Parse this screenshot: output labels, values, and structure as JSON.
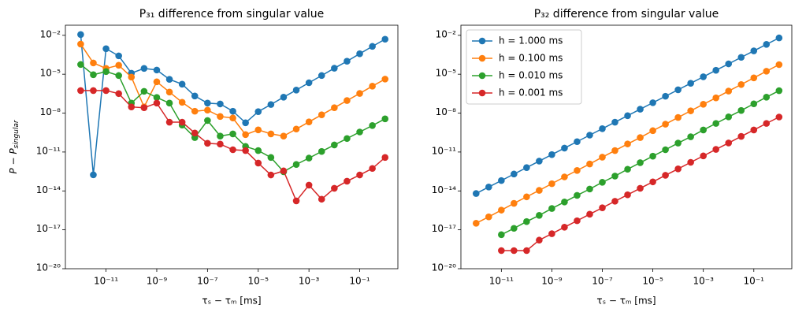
{
  "chart_data": [
    {
      "type": "line",
      "title": "P₃₁ difference from singular value",
      "xlabel": "τₛ − τₘ [ms]",
      "ylabel": "P − P",
      "ylabel_sub": "singular",
      "xscale": "log",
      "yscale": "log",
      "x": [
        1e-12,
        3.16e-12,
        1e-11,
        3.16e-11,
        1e-10,
        3.16e-10,
        1e-09,
        3.16e-09,
        1e-08,
        3.16e-08,
        1e-07,
        3.16e-07,
        1e-06,
        3.16e-06,
        1e-05,
        3.16e-05,
        0.0001,
        0.000316,
        0.001,
        0.00316,
        0.01,
        0.0316,
        0.1,
        0.316,
        1
      ],
      "xlim": [
        2.5e-13,
        3.2
      ],
      "ylim": [
        1e-20,
        0.06
      ],
      "xticks": [
        {
          "value": 1e-11,
          "label": "10⁻¹¹"
        },
        {
          "value": 1e-09,
          "label": "10⁻⁹"
        },
        {
          "value": 1e-07,
          "label": "10⁻⁷"
        },
        {
          "value": 1e-05,
          "label": "10⁻⁵"
        },
        {
          "value": 0.001,
          "label": "10⁻³"
        },
        {
          "value": 0.1,
          "label": "10⁻¹"
        }
      ],
      "yticks": [
        {
          "value": 1e-20,
          "label": "10⁻²⁰"
        },
        {
          "value": 1e-17,
          "label": "10⁻¹⁷"
        },
        {
          "value": 1e-14,
          "label": "10⁻¹⁴"
        },
        {
          "value": 1e-11,
          "label": "10⁻¹¹"
        },
        {
          "value": 1e-08,
          "label": "10⁻⁸"
        },
        {
          "value": 1e-05,
          "label": "10⁻⁵"
        },
        {
          "value": 0.01,
          "label": "10⁻²"
        }
      ],
      "series": [
        {
          "color": "#1f77b4",
          "values": [
            0.0115,
            1.74e-13,
            0.00093,
            0.00026,
            1.2e-05,
            2.8e-05,
            2.1e-05,
            4e-06,
            1.7e-06,
            2.1e-07,
            5.9e-08,
            5.1e-08,
            1.4e-08,
            1.8e-09,
            1.3e-08,
            4.6e-08,
            1.7e-07,
            6e-07,
            2.2e-06,
            7.9e-06,
            2.9e-05,
            0.0001,
            0.00038,
            0.0014,
            0.005
          ]
        },
        {
          "color": "#ff7f0e",
          "values": [
            0.0021,
            7.4e-05,
            2.8e-05,
            4.9e-05,
            6e-06,
            3e-08,
            2.6e-06,
            4.2e-07,
            6.8e-08,
            1.4e-08,
            1.7e-08,
            5.5e-09,
            4.2e-09,
            2.2e-10,
            5.1e-10,
            2.5e-10,
            1.7e-10,
            5.9e-10,
            2.1e-09,
            7.4e-09,
            2.6e-08,
            9.3e-08,
            3.3e-07,
            1.2e-06,
            4.2e-06
          ]
        },
        {
          "color": "#2ca02c",
          "values": [
            5.6e-05,
            9.1e-06,
            1.6e-05,
            7.9e-06,
            5.9e-08,
            4.8e-07,
            1.6e-07,
            5.9e-08,
            1.2e-09,
            1.3e-10,
            2.7e-09,
            1.7e-10,
            2.5e-10,
            2.7e-11,
            1.3e-11,
            3.8e-12,
            3e-13,
            1.1e-12,
            3.4e-12,
            1.1e-11,
            3.5e-11,
            1.1e-10,
            3.5e-10,
            1.1e-09,
            3.6e-09
          ]
        },
        {
          "color": "#d62728",
          "values": [
            5.5e-07,
            5.5e-07,
            5.5e-07,
            3.2e-07,
            3e-08,
            2.6e-08,
            5.9e-08,
            2e-09,
            2e-09,
            2.9e-10,
            4.7e-11,
            4.1e-11,
            1.5e-11,
            1.3e-11,
            1.4e-12,
            1.7e-13,
            3.5e-13,
            1.7e-15,
            2.8e-14,
            2.3e-15,
            1.6e-14,
            5.6e-14,
            1.7e-13,
            5.4e-13,
            3.8e-12
          ]
        }
      ]
    },
    {
      "type": "line",
      "title": "P₃₂ difference from singular value",
      "xlabel": "τₛ − τₘ [ms]",
      "xscale": "log",
      "yscale": "log",
      "legend": "upper left",
      "x": [
        1e-12,
        3.16e-12,
        1e-11,
        3.16e-11,
        1e-10,
        3.16e-10,
        1e-09,
        3.16e-09,
        1e-08,
        3.16e-08,
        1e-07,
        3.16e-07,
        1e-06,
        3.16e-06,
        1e-05,
        3.16e-05,
        0.0001,
        0.000316,
        0.001,
        0.00316,
        0.01,
        0.0316,
        0.1,
        0.316,
        1
      ],
      "xlim": [
        2.5e-13,
        3.2
      ],
      "ylim": [
        1e-20,
        0.06
      ],
      "xticks": [
        {
          "value": 1e-11,
          "label": "10⁻¹¹"
        },
        {
          "value": 1e-09,
          "label": "10⁻⁹"
        },
        {
          "value": 1e-07,
          "label": "10⁻⁷"
        },
        {
          "value": 1e-05,
          "label": "10⁻⁵"
        },
        {
          "value": 0.001,
          "label": "10⁻³"
        },
        {
          "value": 0.1,
          "label": "10⁻¹"
        }
      ],
      "yticks": [
        {
          "value": 1e-20,
          "label": "10⁻²⁰"
        },
        {
          "value": 1e-17,
          "label": "10⁻¹⁷"
        },
        {
          "value": 1e-14,
          "label": "10⁻¹⁴"
        },
        {
          "value": 1e-11,
          "label": "10⁻¹¹"
        },
        {
          "value": 1e-08,
          "label": "10⁻⁸"
        },
        {
          "value": 1e-05,
          "label": "10⁻⁵"
        },
        {
          "value": 0.01,
          "label": "10⁻²"
        }
      ],
      "series": [
        {
          "name": "h = 1.000 ms",
          "color": "#1f77b4",
          "values": [
            6.3e-15,
            2e-14,
            6.3e-14,
            2e-13,
            6.3e-13,
            2e-12,
            6.3e-12,
            2e-11,
            6.3e-11,
            2e-10,
            6.3e-10,
            2e-09,
            6.3e-09,
            2e-08,
            6.3e-08,
            2e-07,
            6.3e-07,
            2e-06,
            6.3e-06,
            2e-05,
            6.3e-05,
            0.0002,
            0.00063,
            0.002,
            0.0063
          ]
        },
        {
          "name": "h = 0.100 ms",
          "color": "#ff7f0e",
          "values": [
            3.2e-17,
            1e-16,
            3.3e-16,
            1.1e-15,
            3.5e-15,
            1.1e-14,
            3.6e-14,
            1.2e-13,
            3.8e-13,
            1.2e-12,
            4e-12,
            1.3e-11,
            4.2e-11,
            1.3e-10,
            4.4e-10,
            1.4e-09,
            4.6e-09,
            1.5e-08,
            4.8e-08,
            1.5e-07,
            5e-07,
            1.6e-06,
            5.2e-06,
            1.7e-05,
            5.5e-05
          ]
        },
        {
          "name": "h = 0.010 ms",
          "color": "#2ca02c",
          "values": [
            null,
            null,
            4.2e-18,
            1.3e-17,
            4.3e-17,
            1.3e-16,
            4.4e-16,
            1.4e-15,
            4.5e-15,
            1.4e-14,
            4.6e-14,
            1.4e-13,
            4.7e-13,
            1.5e-12,
            4.8e-12,
            1.5e-11,
            4.9e-11,
            1.5e-10,
            5e-10,
            1.6e-09,
            5.1e-09,
            1.6e-08,
            5.2e-08,
            1.7e-07,
            5.4e-07
          ]
        },
        {
          "name": "h = 0.001 ms",
          "color": "#d62728",
          "values": [
            null,
            null,
            2.5e-19,
            2.5e-19,
            2.5e-19,
            1.6e-18,
            5e-18,
            1.6e-17,
            5e-17,
            1.6e-16,
            5e-16,
            1.6e-15,
            5e-15,
            1.6e-14,
            5e-14,
            1.6e-13,
            5e-13,
            1.6e-12,
            5e-12,
            1.6e-11,
            5e-11,
            1.6e-10,
            5e-10,
            1.6e-09,
            5e-09
          ]
        }
      ]
    }
  ]
}
